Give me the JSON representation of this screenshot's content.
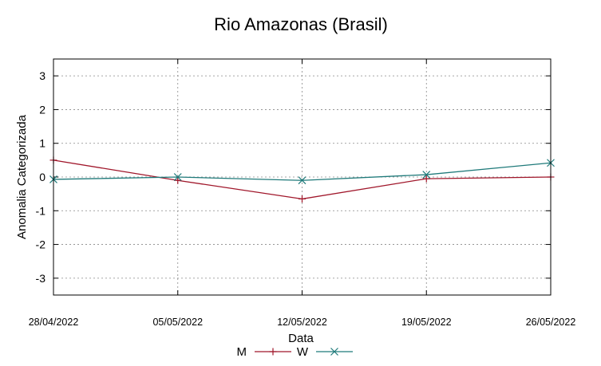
{
  "chart_data": {
    "type": "line",
    "title": "Rio Amazonas (Brasil)",
    "xlabel": "Data",
    "ylabel": "Anomalia Categorizada",
    "categories": [
      "28/04/2022",
      "05/05/2022",
      "12/05/2022",
      "19/05/2022",
      "26/05/2022"
    ],
    "ylim": [
      -3.5,
      3.5
    ],
    "yticks": [
      "-3",
      "-2",
      "-1",
      "0",
      "1",
      "2",
      "3"
    ],
    "grid": true,
    "legend_position": "bottom",
    "series": [
      {
        "name": "M",
        "color": "#a0162a",
        "marker": "plus",
        "values": [
          0.5,
          -0.1,
          -0.65,
          -0.05,
          0.0
        ]
      },
      {
        "name": "W",
        "color": "#1f7a7a",
        "marker": "cross",
        "values": [
          -0.07,
          0.0,
          -0.1,
          0.07,
          0.42
        ]
      }
    ]
  }
}
